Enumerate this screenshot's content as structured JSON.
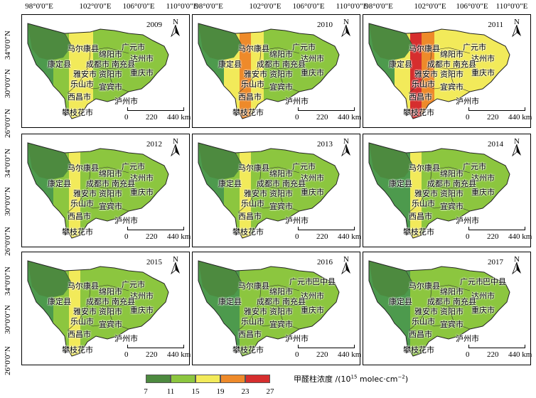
{
  "axes": {
    "longitude_labels": [
      "98°0'0\"E",
      "102°0'0\"E",
      "106°0'0\"E",
      "110°0'0\"E"
    ],
    "latitude_labels": [
      "34°0'0\"N",
      "30°0'0\"N",
      "26°0'0\"N"
    ]
  },
  "panels": [
    {
      "year": "2009",
      "bands": [
        "#4d9a4d",
        "#8cc63f",
        "#f2ea5a",
        "#f2ea5a",
        "#8cc63f"
      ]
    },
    {
      "year": "2010",
      "bands": [
        "#4d9a4d",
        "#f2ea5a",
        "#ee8a2a",
        "#f2ea5a",
        "#8cc63f"
      ]
    },
    {
      "year": "2011",
      "bands": [
        "#4d9a4d",
        "#f2ea5a",
        "#d62e2e",
        "#ee8a2a",
        "#f2ea5a"
      ]
    },
    {
      "year": "2012",
      "bands": [
        "#4d9a4d",
        "#8cc63f",
        "#f2ea5a",
        "#8cc63f",
        "#8cc63f"
      ]
    },
    {
      "year": "2013",
      "bands": [
        "#4d9a4d",
        "#8cc63f",
        "#f2ea5a",
        "#8cc63f",
        "#8cc63f"
      ]
    },
    {
      "year": "2014",
      "bands": [
        "#4d9a4d",
        "#4d9a4d",
        "#f2ea5a",
        "#8cc63f",
        "#8cc63f"
      ]
    },
    {
      "year": "2015",
      "bands": [
        "#4d9a4d",
        "#8cc63f",
        "#f2ea5a",
        "#8cc63f",
        "#8cc63f"
      ]
    },
    {
      "year": "2016",
      "bands": [
        "#4d9a4d",
        "#4d9a4d",
        "#8cc63f",
        "#8cc63f",
        "#8cc63f"
      ]
    },
    {
      "year": "2017",
      "bands": [
        "#4d9a4d",
        "#4d9a4d",
        "#8cc63f",
        "#8cc63f",
        "#8cc63f"
      ]
    }
  ],
  "cities": {
    "maerkang": "马尔康县",
    "mianyang": "绵阳市",
    "guangyuan": "广元市",
    "dazhou": "达州市",
    "kangding": "康定县",
    "chengdu": "成都市",
    "nanchong": "南充县",
    "yaan": "雅安市",
    "ziyang": "资阳市",
    "chongqing": "重庆市",
    "leshan": "乐山市",
    "yibin": "宜宾市",
    "xichang": "西昌市",
    "luzhou": "泸州市",
    "panzhihua": "攀枝花市",
    "bazhong": "巴中县"
  },
  "north_letter": "N",
  "scale": {
    "ticks": [
      "0",
      "220",
      "440 km"
    ]
  },
  "legend": {
    "title": "甲醛柱浓度 /(10",
    "title_exp": "15",
    "title_unit": " molec·cm",
    "title_unit_exp": "−2",
    "title_close": ")",
    "colors": [
      "#4d8a3f",
      "#8cc63f",
      "#f2ea5a",
      "#ee8a2a",
      "#d62e2e"
    ],
    "ticks": [
      "7",
      "11",
      "15",
      "19",
      "23",
      "27"
    ]
  }
}
